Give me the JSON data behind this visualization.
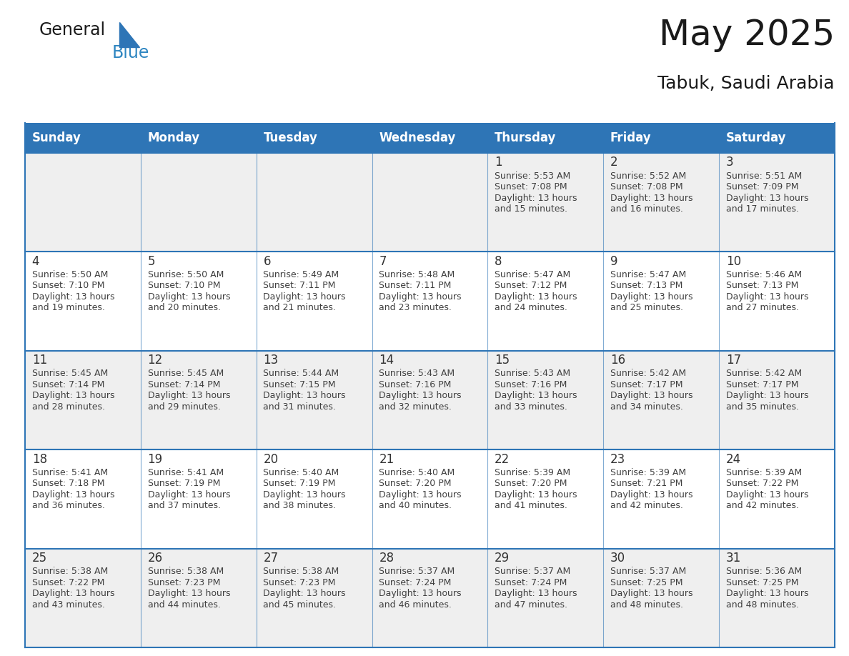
{
  "title": "May 2025",
  "subtitle": "Tabuk, Saudi Arabia",
  "days_of_week": [
    "Sunday",
    "Monday",
    "Tuesday",
    "Wednesday",
    "Thursday",
    "Friday",
    "Saturday"
  ],
  "header_bg": "#2E75B6",
  "header_text": "#FFFFFF",
  "cell_bg_odd": "#EFEFEF",
  "cell_bg_even": "#FFFFFF",
  "border_color": "#2E75B6",
  "text_color": "#404040",
  "day_number_color": "#333333",
  "calendar_data": [
    [
      null,
      null,
      null,
      null,
      {
        "day": 1,
        "sunrise": "5:53 AM",
        "sunset": "7:08 PM",
        "daylight": "13 hours and 15 minutes."
      },
      {
        "day": 2,
        "sunrise": "5:52 AM",
        "sunset": "7:08 PM",
        "daylight": "13 hours and 16 minutes."
      },
      {
        "day": 3,
        "sunrise": "5:51 AM",
        "sunset": "7:09 PM",
        "daylight": "13 hours and 17 minutes."
      }
    ],
    [
      {
        "day": 4,
        "sunrise": "5:50 AM",
        "sunset": "7:10 PM",
        "daylight": "13 hours and 19 minutes."
      },
      {
        "day": 5,
        "sunrise": "5:50 AM",
        "sunset": "7:10 PM",
        "daylight": "13 hours and 20 minutes."
      },
      {
        "day": 6,
        "sunrise": "5:49 AM",
        "sunset": "7:11 PM",
        "daylight": "13 hours and 21 minutes."
      },
      {
        "day": 7,
        "sunrise": "5:48 AM",
        "sunset": "7:11 PM",
        "daylight": "13 hours and 23 minutes."
      },
      {
        "day": 8,
        "sunrise": "5:47 AM",
        "sunset": "7:12 PM",
        "daylight": "13 hours and 24 minutes."
      },
      {
        "day": 9,
        "sunrise": "5:47 AM",
        "sunset": "7:13 PM",
        "daylight": "13 hours and 25 minutes."
      },
      {
        "day": 10,
        "sunrise": "5:46 AM",
        "sunset": "7:13 PM",
        "daylight": "13 hours and 27 minutes."
      }
    ],
    [
      {
        "day": 11,
        "sunrise": "5:45 AM",
        "sunset": "7:14 PM",
        "daylight": "13 hours and 28 minutes."
      },
      {
        "day": 12,
        "sunrise": "5:45 AM",
        "sunset": "7:14 PM",
        "daylight": "13 hours and 29 minutes."
      },
      {
        "day": 13,
        "sunrise": "5:44 AM",
        "sunset": "7:15 PM",
        "daylight": "13 hours and 31 minutes."
      },
      {
        "day": 14,
        "sunrise": "5:43 AM",
        "sunset": "7:16 PM",
        "daylight": "13 hours and 32 minutes."
      },
      {
        "day": 15,
        "sunrise": "5:43 AM",
        "sunset": "7:16 PM",
        "daylight": "13 hours and 33 minutes."
      },
      {
        "day": 16,
        "sunrise": "5:42 AM",
        "sunset": "7:17 PM",
        "daylight": "13 hours and 34 minutes."
      },
      {
        "day": 17,
        "sunrise": "5:42 AM",
        "sunset": "7:17 PM",
        "daylight": "13 hours and 35 minutes."
      }
    ],
    [
      {
        "day": 18,
        "sunrise": "5:41 AM",
        "sunset": "7:18 PM",
        "daylight": "13 hours and 36 minutes."
      },
      {
        "day": 19,
        "sunrise": "5:41 AM",
        "sunset": "7:19 PM",
        "daylight": "13 hours and 37 minutes."
      },
      {
        "day": 20,
        "sunrise": "5:40 AM",
        "sunset": "7:19 PM",
        "daylight": "13 hours and 38 minutes."
      },
      {
        "day": 21,
        "sunrise": "5:40 AM",
        "sunset": "7:20 PM",
        "daylight": "13 hours and 40 minutes."
      },
      {
        "day": 22,
        "sunrise": "5:39 AM",
        "sunset": "7:20 PM",
        "daylight": "13 hours and 41 minutes."
      },
      {
        "day": 23,
        "sunrise": "5:39 AM",
        "sunset": "7:21 PM",
        "daylight": "13 hours and 42 minutes."
      },
      {
        "day": 24,
        "sunrise": "5:39 AM",
        "sunset": "7:22 PM",
        "daylight": "13 hours and 42 minutes."
      }
    ],
    [
      {
        "day": 25,
        "sunrise": "5:38 AM",
        "sunset": "7:22 PM",
        "daylight": "13 hours and 43 minutes."
      },
      {
        "day": 26,
        "sunrise": "5:38 AM",
        "sunset": "7:23 PM",
        "daylight": "13 hours and 44 minutes."
      },
      {
        "day": 27,
        "sunrise": "5:38 AM",
        "sunset": "7:23 PM",
        "daylight": "13 hours and 45 minutes."
      },
      {
        "day": 28,
        "sunrise": "5:37 AM",
        "sunset": "7:24 PM",
        "daylight": "13 hours and 46 minutes."
      },
      {
        "day": 29,
        "sunrise": "5:37 AM",
        "sunset": "7:24 PM",
        "daylight": "13 hours and 47 minutes."
      },
      {
        "day": 30,
        "sunrise": "5:37 AM",
        "sunset": "7:25 PM",
        "daylight": "13 hours and 48 minutes."
      },
      {
        "day": 31,
        "sunrise": "5:36 AM",
        "sunset": "7:25 PM",
        "daylight": "13 hours and 48 minutes."
      }
    ]
  ],
  "logo_text1": "General",
  "logo_text2": "Blue",
  "logo_color1": "#1a1a1a",
  "logo_color2": "#2E86C1",
  "logo_triangle_color": "#2E75B6",
  "title_fontsize": 36,
  "subtitle_fontsize": 18,
  "header_fontsize": 12,
  "day_num_fontsize": 12,
  "cell_text_fontsize": 9
}
